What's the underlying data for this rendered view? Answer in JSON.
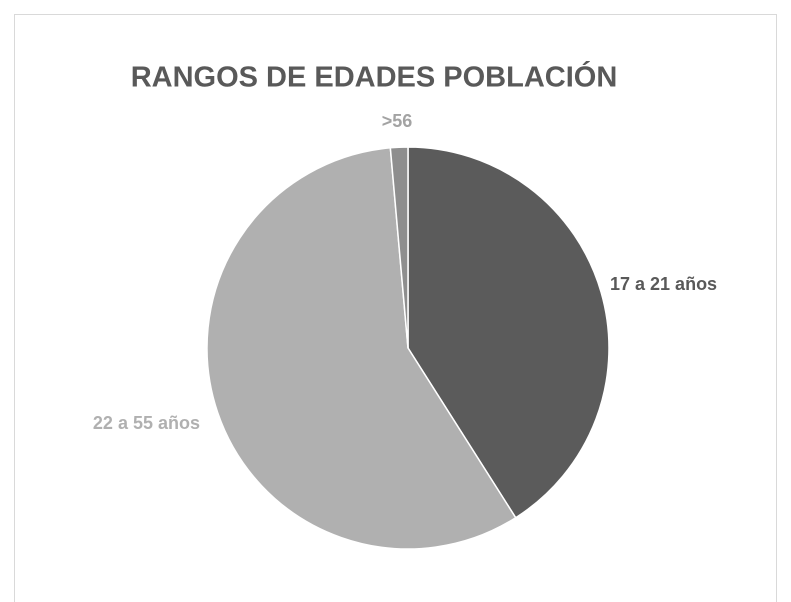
{
  "chart_data": {
    "type": "pie",
    "title": "RANGOS DE EDADES POBLACIÓN",
    "categories": [
      "17 a 21 años",
      "22 a 55 años",
      ">56"
    ],
    "values": [
      41,
      57.6,
      1.4
    ],
    "colors": [
      "#5b5b5b",
      "#b0b0b0",
      "#8e8e8e"
    ],
    "label_colors": [
      "#595959",
      "#b0b0b0",
      "#a3a3a3"
    ]
  }
}
